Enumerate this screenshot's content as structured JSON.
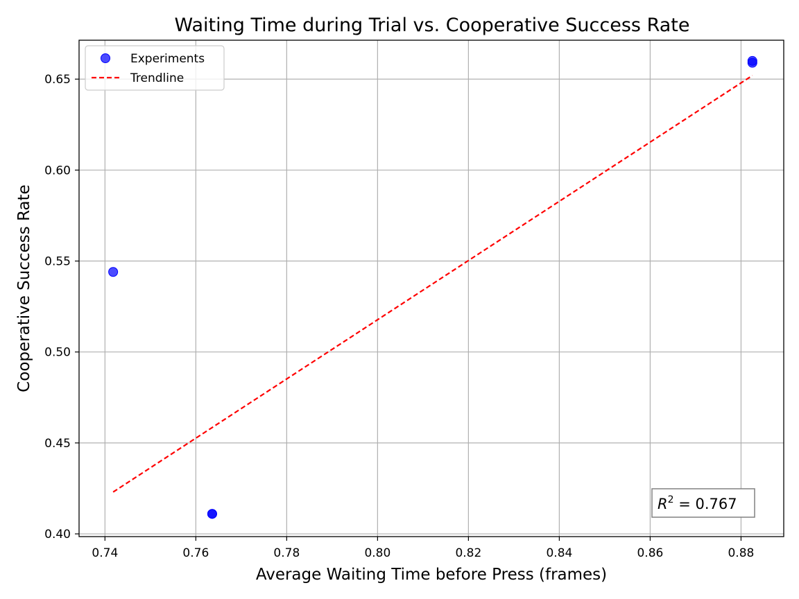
{
  "chart_data": {
    "type": "scatter",
    "title": "Waiting Time during Trial vs. Cooperative Success Rate",
    "xlabel": "Average Waiting Time before Press (frames)",
    "ylabel": "Cooperative Success Rate",
    "xlim": [
      0.7343,
      0.8894
    ],
    "ylim": [
      0.3985,
      0.6714
    ],
    "xticks": [
      0.74,
      0.76,
      0.78,
      0.8,
      0.82,
      0.84,
      0.86,
      0.88
    ],
    "xtick_labels": [
      "0.74",
      "0.76",
      "0.78",
      "0.80",
      "0.82",
      "0.84",
      "0.86",
      "0.88"
    ],
    "yticks": [
      0.4,
      0.45,
      0.5,
      0.55,
      0.6,
      0.65
    ],
    "ytick_labels": [
      "0.40",
      "0.45",
      "0.50",
      "0.55",
      "0.60",
      "0.65"
    ],
    "grid": true,
    "legend_position": "upper-left",
    "series": [
      {
        "name": "Experiments",
        "kind": "scatter",
        "color": "#0000ff",
        "points": [
          {
            "x": 0.7418,
            "y": 0.544
          },
          {
            "x": 0.7636,
            "y": 0.411
          },
          {
            "x": 0.7636,
            "y": 0.411
          },
          {
            "x": 0.8825,
            "y": 0.659
          },
          {
            "x": 0.8825,
            "y": 0.66
          }
        ]
      },
      {
        "name": "Trendline",
        "kind": "line",
        "style": "dashed",
        "color": "#ff0000",
        "points": [
          {
            "x": 0.7418,
            "y": 0.423
          },
          {
            "x": 0.8825,
            "y": 0.652
          }
        ]
      }
    ],
    "annotation": {
      "r2_symbol": "R",
      "r2_exponent": "2",
      "r2_value_text": " = 0.767",
      "position": "lower-right"
    }
  }
}
